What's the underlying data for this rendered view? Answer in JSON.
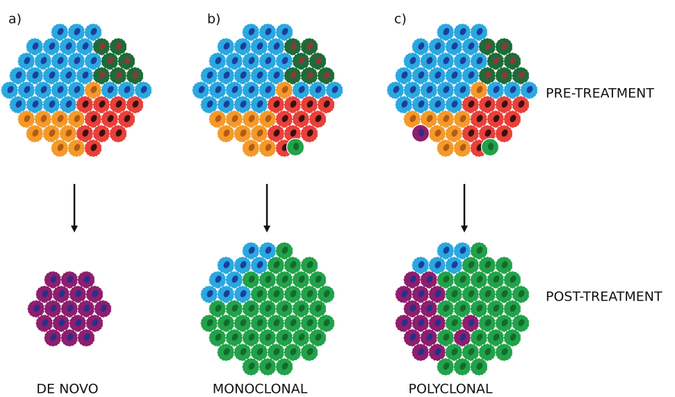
{
  "panels": [
    {
      "label": "a)",
      "outcome": "DE NOVO"
    },
    {
      "label": "b)",
      "outcome": "MONOCLONAL"
    },
    {
      "label": "c)",
      "outcome": "POLYCLONAL"
    }
  ],
  "rows": [
    "PRE-TREATMENT",
    "POST-TREATMENT"
  ]
}
